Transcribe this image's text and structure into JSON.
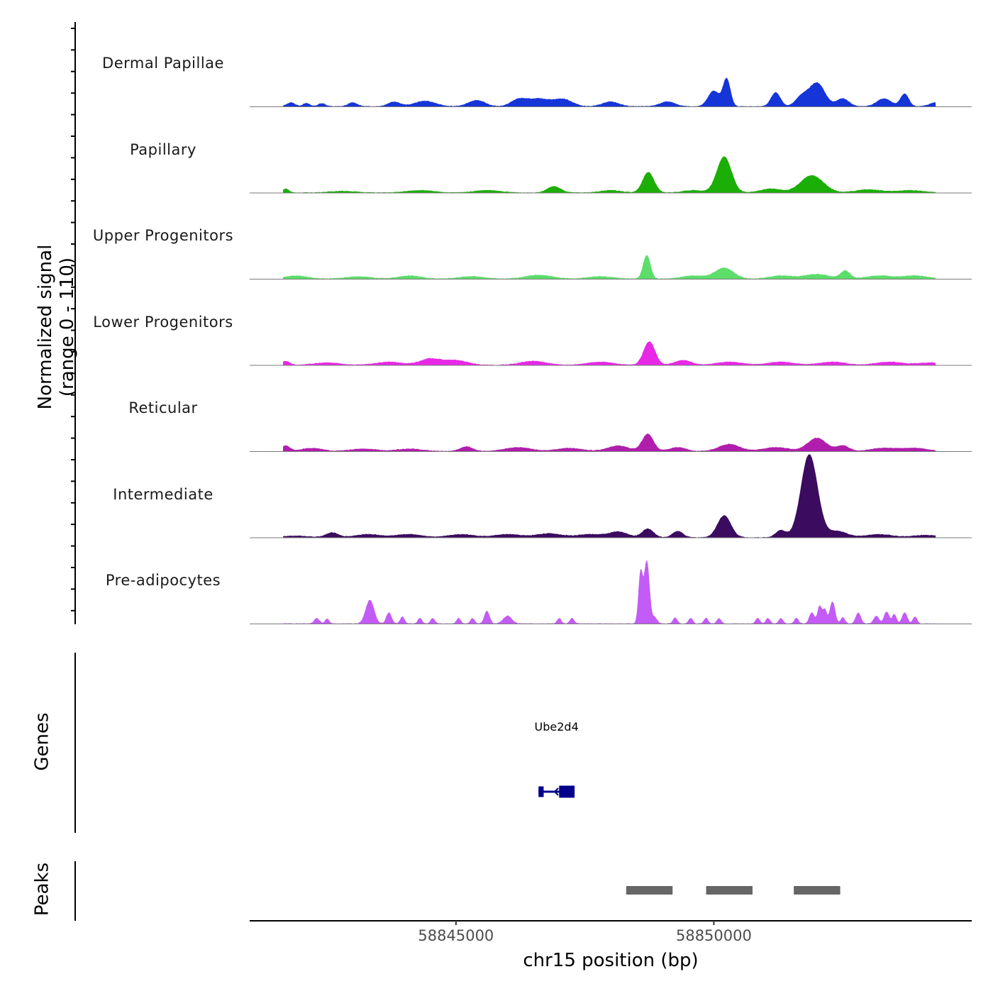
{
  "chart_data": {
    "type": "coverage-track",
    "y_axis_title": "Normalized signal\n(range 0 - 110)",
    "y_range": [
      0,
      110
    ],
    "x_axis_title": "chr15 position (bp)",
    "x_range": [
      58841000,
      58855000
    ],
    "x_ticks": [
      {
        "value": 58845000,
        "label": "58845000"
      },
      {
        "value": 58850000,
        "label": "58850000"
      }
    ],
    "tracks": [
      {
        "name": "Dermal Papillae",
        "color": "#1535D8",
        "peaks": [
          [
            58841800,
            5,
            80
          ],
          [
            58842100,
            4,
            70
          ],
          [
            58842400,
            4,
            70
          ],
          [
            58843000,
            5,
            90
          ],
          [
            58843800,
            6,
            120
          ],
          [
            58844400,
            7,
            200
          ],
          [
            58845400,
            8,
            160
          ],
          [
            58846200,
            7,
            140
          ],
          [
            58846600,
            10,
            260
          ],
          [
            58847100,
            8,
            170
          ],
          [
            58848000,
            6,
            160
          ],
          [
            58849100,
            6,
            150
          ],
          [
            58850000,
            20,
            110
          ],
          [
            58850250,
            35,
            70
          ],
          [
            58851200,
            18,
            90
          ],
          [
            58851700,
            12,
            120
          ],
          [
            58852000,
            30,
            150
          ],
          [
            58852500,
            10,
            120
          ],
          [
            58853300,
            10,
            140
          ],
          [
            58853700,
            16,
            80
          ],
          [
            58854300,
            5,
            120
          ]
        ]
      },
      {
        "name": "Papillary",
        "color": "#1BAE06",
        "peaks": [
          [
            58841700,
            5,
            60
          ],
          [
            58842800,
            2,
            250
          ],
          [
            58844300,
            3,
            250
          ],
          [
            58845600,
            3,
            250
          ],
          [
            58846900,
            8,
            130
          ],
          [
            58848000,
            3,
            200
          ],
          [
            58848730,
            26,
            110
          ],
          [
            58849600,
            3,
            200
          ],
          [
            58850200,
            46,
            140
          ],
          [
            58851100,
            5,
            200
          ],
          [
            58851900,
            22,
            220
          ],
          [
            58853000,
            4,
            250
          ],
          [
            58853800,
            3,
            250
          ]
        ]
      },
      {
        "name": "Upper Progenitors",
        "color": "#5CDE6A",
        "peaks": [
          [
            58841900,
            4,
            220
          ],
          [
            58843100,
            3,
            250
          ],
          [
            58844100,
            4,
            220
          ],
          [
            58845300,
            3,
            250
          ],
          [
            58846600,
            5,
            250
          ],
          [
            58847800,
            3,
            250
          ],
          [
            58848700,
            30,
            70
          ],
          [
            58849600,
            4,
            220
          ],
          [
            58850200,
            14,
            180
          ],
          [
            58851300,
            4,
            220
          ],
          [
            58852000,
            6,
            250
          ],
          [
            58852550,
            10,
            90
          ],
          [
            58853200,
            4,
            250
          ],
          [
            58853900,
            4,
            250
          ]
        ]
      },
      {
        "name": "Lower Progenitors",
        "color": "#E827E7",
        "peaks": [
          [
            58841700,
            5,
            80
          ],
          [
            58842500,
            3,
            250
          ],
          [
            58843700,
            4,
            250
          ],
          [
            58844500,
            8,
            200
          ],
          [
            58845000,
            6,
            220
          ],
          [
            58846500,
            5,
            250
          ],
          [
            58847800,
            4,
            250
          ],
          [
            58848750,
            30,
            110
          ],
          [
            58849400,
            6,
            160
          ],
          [
            58850300,
            4,
            250
          ],
          [
            58851300,
            4,
            250
          ],
          [
            58852300,
            4,
            250
          ],
          [
            58853400,
            4,
            250
          ],
          [
            58854200,
            3,
            250
          ]
        ]
      },
      {
        "name": "Reticular",
        "color": "#B11DAC",
        "peaks": [
          [
            58841700,
            7,
            80
          ],
          [
            58842200,
            4,
            200
          ],
          [
            58843200,
            3,
            250
          ],
          [
            58844100,
            3,
            250
          ],
          [
            58845200,
            6,
            120
          ],
          [
            58846200,
            5,
            250
          ],
          [
            58847200,
            4,
            250
          ],
          [
            58848150,
            7,
            200
          ],
          [
            58848720,
            22,
            110
          ],
          [
            58849300,
            5,
            160
          ],
          [
            58850300,
            9,
            200
          ],
          [
            58851200,
            5,
            250
          ],
          [
            58852000,
            17,
            180
          ],
          [
            58852500,
            7,
            120
          ],
          [
            58853300,
            4,
            250
          ],
          [
            58853900,
            4,
            250
          ]
        ]
      },
      {
        "name": "Intermediate",
        "color": "#3B0B5F",
        "peaks": [
          [
            58841900,
            2,
            250
          ],
          [
            58842600,
            6,
            120
          ],
          [
            58843300,
            4,
            250
          ],
          [
            58844100,
            4,
            250
          ],
          [
            58845100,
            4,
            250
          ],
          [
            58846000,
            4,
            250
          ],
          [
            58846800,
            5,
            250
          ],
          [
            58847600,
            4,
            250
          ],
          [
            58848150,
            7,
            180
          ],
          [
            58848720,
            11,
            110
          ],
          [
            58849300,
            8,
            100
          ],
          [
            58850200,
            28,
            130
          ],
          [
            58851300,
            9,
            100
          ],
          [
            58851850,
            106,
            160
          ],
          [
            58852400,
            8,
            180
          ],
          [
            58853200,
            4,
            250
          ],
          [
            58854100,
            3,
            250
          ]
        ]
      },
      {
        "name": "Pre-adipocytes",
        "color": "#C35BF6",
        "peaks": [
          [
            58842300,
            7,
            50
          ],
          [
            58842500,
            6,
            40
          ],
          [
            58843330,
            30,
            80
          ],
          [
            58843700,
            14,
            50
          ],
          [
            58843960,
            9,
            40
          ],
          [
            58844300,
            7,
            40
          ],
          [
            58844550,
            7,
            40
          ],
          [
            58845050,
            7,
            40
          ],
          [
            58845320,
            7,
            40
          ],
          [
            58845600,
            16,
            50
          ],
          [
            58846000,
            10,
            80
          ],
          [
            58847000,
            7,
            40
          ],
          [
            58847250,
            7,
            40
          ],
          [
            58848580,
            65,
            40
          ],
          [
            58848700,
            80,
            50
          ],
          [
            58848850,
            8,
            50
          ],
          [
            58849250,
            8,
            40
          ],
          [
            58849550,
            7,
            40
          ],
          [
            58849850,
            7,
            40
          ],
          [
            58850100,
            7,
            40
          ],
          [
            58850850,
            7,
            40
          ],
          [
            58851050,
            7,
            40
          ],
          [
            58851300,
            7,
            40
          ],
          [
            58851600,
            7,
            40
          ],
          [
            58851900,
            14,
            50
          ],
          [
            58852050,
            22,
            40
          ],
          [
            58852150,
            18,
            40
          ],
          [
            58852300,
            28,
            50
          ],
          [
            58852500,
            8,
            40
          ],
          [
            58852800,
            14,
            50
          ],
          [
            58853150,
            10,
            50
          ],
          [
            58853350,
            15,
            50
          ],
          [
            58853500,
            12,
            40
          ],
          [
            58853700,
            14,
            50
          ],
          [
            58853900,
            9,
            40
          ]
        ]
      }
    ],
    "genes": [
      {
        "name": "Ube2d4",
        "start": 58846600,
        "end": 58847300,
        "strand": "-",
        "exons": [
          [
            58846600,
            58846700
          ],
          [
            58847000,
            58847300
          ]
        ]
      }
    ],
    "peaks": [
      {
        "start": 58848300,
        "end": 58849200
      },
      {
        "start": 58849850,
        "end": 58850750
      },
      {
        "start": 58851550,
        "end": 58852450
      }
    ],
    "panel_labels": {
      "genes": "Genes",
      "peaks": "Peaks"
    }
  }
}
